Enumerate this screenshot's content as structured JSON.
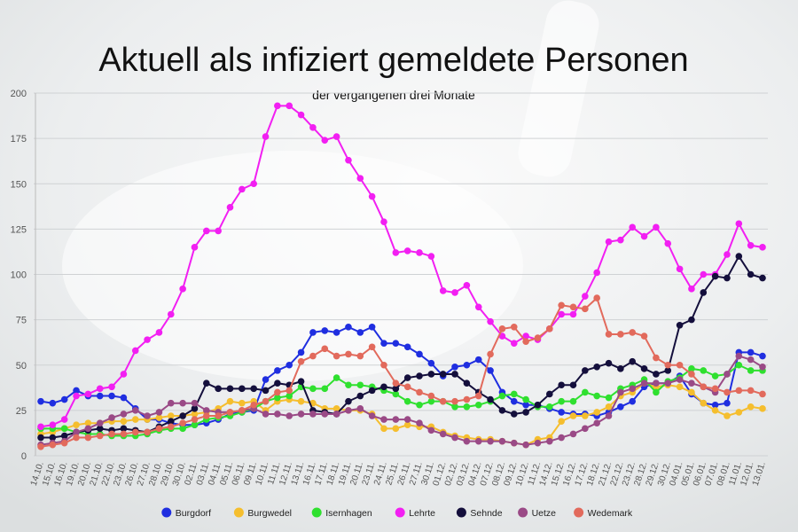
{
  "chart_data": {
    "type": "line",
    "title": "Aktuell als infiziert gemeldete Personen",
    "subtitle": "der vergangenen drei Monate",
    "categories": [
      "14.10.",
      "15.10.",
      "16.10.",
      "19.10.",
      "20.10.",
      "21.10.",
      "22.10.",
      "23.10.",
      "26.10.",
      "27.10.",
      "28.10.",
      "29.10.",
      "30.10.",
      "02.11.",
      "03.11.",
      "04.11.",
      "05.11.",
      "06.11.",
      "09.11.",
      "10.11.",
      "11.11.",
      "12.11.",
      "13.11.",
      "16.11.",
      "17.11.",
      "18.11.",
      "19.11.",
      "20.11.",
      "23.11.",
      "24.11.",
      "25.11.",
      "26.11.",
      "27.11.",
      "30.11.",
      "01.12.",
      "02.12.",
      "03.12.",
      "04.12.",
      "07.12.",
      "08.12.",
      "09.12.",
      "10.12.",
      "11.12.",
      "14.12.",
      "15.12.",
      "16.12.",
      "17.12.",
      "18.12.",
      "21.12.",
      "22.12.",
      "23.12.",
      "28.12.",
      "29.12.",
      "30.12.",
      "04.01.",
      "05.01.",
      "06.01.",
      "07.01.",
      "08.01.",
      "11.01.",
      "12.01.",
      "13.01."
    ],
    "ylim": [
      0,
      200
    ],
    "yticks": [
      0,
      25,
      50,
      75,
      100,
      125,
      150,
      175,
      200
    ],
    "grid": true,
    "series": [
      {
        "name": "Burgdorf",
        "color": "#1f2ee0",
        "values": [
          30,
          29,
          31,
          36,
          33,
          33,
          33,
          32,
          26,
          20,
          20,
          18,
          17,
          17,
          18,
          20,
          23,
          24,
          25,
          42,
          47,
          50,
          57,
          68,
          69,
          68,
          71,
          68,
          71,
          62,
          62,
          60,
          56,
          51,
          44,
          49,
          50,
          53,
          47,
          35,
          30,
          28,
          28,
          26,
          24,
          23,
          23,
          22,
          24,
          27,
          30,
          38,
          40,
          40,
          44,
          34,
          29,
          28,
          29,
          57,
          57,
          55
        ]
      },
      {
        "name": "Burgwedel",
        "color": "#f5be2e",
        "values": [
          12,
          13,
          15,
          17,
          18,
          18,
          19,
          19,
          20,
          20,
          21,
          22,
          22,
          23,
          24,
          26,
          30,
          29,
          30,
          25,
          30,
          31,
          30,
          29,
          26,
          26,
          25,
          25,
          23,
          15,
          15,
          17,
          16,
          16,
          13,
          11,
          10,
          9,
          9,
          8,
          7,
          6,
          9,
          10,
          19,
          22,
          22,
          24,
          27,
          33,
          35,
          40,
          38,
          39,
          38,
          35,
          29,
          25,
          22,
          24,
          27,
          26
        ]
      },
      {
        "name": "Isernhagen",
        "color": "#2fe02f",
        "values": [
          15,
          15,
          15,
          13,
          12,
          12,
          11,
          11,
          11,
          12,
          14,
          15,
          15,
          17,
          20,
          21,
          22,
          24,
          26,
          30,
          32,
          33,
          38,
          37,
          37,
          43,
          39,
          39,
          38,
          36,
          34,
          30,
          28,
          30,
          30,
          27,
          27,
          28,
          30,
          33,
          34,
          31,
          27,
          27,
          30,
          30,
          35,
          33,
          32,
          37,
          39,
          42,
          35,
          41,
          43,
          48,
          47,
          44,
          45,
          50,
          47,
          47
        ]
      },
      {
        "name": "Lehrte",
        "color": "#f21ff2",
        "values": [
          16,
          17,
          20,
          33,
          34,
          37,
          38,
          45,
          58,
          64,
          68,
          78,
          92,
          115,
          124,
          124,
          137,
          147,
          150,
          176,
          193,
          193,
          188,
          181,
          174,
          176,
          163,
          153,
          143,
          129,
          112,
          113,
          112,
          110,
          91,
          90,
          94,
          82,
          74,
          66,
          62,
          66,
          64,
          70,
          78,
          78,
          88,
          101,
          118,
          119,
          126,
          121,
          126,
          117,
          103,
          92,
          100,
          100,
          111,
          128,
          116,
          115
        ]
      },
      {
        "name": "Sehnde",
        "color": "#140f3c",
        "values": [
          10,
          10,
          11,
          13,
          14,
          15,
          14,
          15,
          14,
          13,
          16,
          19,
          22,
          26,
          40,
          37,
          37,
          37,
          37,
          36,
          40,
          39,
          41,
          25,
          24,
          23,
          30,
          33,
          36,
          38,
          37,
          43,
          44,
          45,
          45,
          45,
          40,
          35,
          31,
          25,
          23,
          24,
          28,
          34,
          39,
          39,
          47,
          49,
          51,
          48,
          52,
          48,
          45,
          47,
          72,
          75,
          90,
          99,
          98,
          110,
          100,
          98
        ]
      },
      {
        "name": "Uetze",
        "color": "#9a4a86",
        "values": [
          6,
          7,
          8,
          13,
          15,
          18,
          21,
          23,
          25,
          22,
          24,
          29,
          29,
          29,
          25,
          24,
          24,
          25,
          26,
          23,
          23,
          22,
          23,
          23,
          23,
          23,
          25,
          26,
          22,
          20,
          20,
          20,
          18,
          14,
          12,
          10,
          8,
          8,
          8,
          8,
          7,
          6,
          7,
          8,
          10,
          12,
          15,
          18,
          22,
          35,
          37,
          40,
          40,
          40,
          42,
          40,
          38,
          35,
          45,
          55,
          53,
          49
        ]
      },
      {
        "name": "Wedemark",
        "color": "#e26a5c",
        "values": [
          5,
          6,
          7,
          10,
          10,
          11,
          12,
          12,
          13,
          13,
          15,
          16,
          18,
          20,
          22,
          22,
          24,
          25,
          28,
          30,
          35,
          36,
          52,
          55,
          59,
          55,
          56,
          55,
          60,
          50,
          40,
          38,
          35,
          33,
          30,
          30,
          31,
          33,
          56,
          70,
          71,
          63,
          65,
          70,
          83,
          82,
          81,
          87,
          67,
          67,
          68,
          66,
          54,
          50,
          50,
          45,
          38,
          37,
          35,
          36,
          36,
          34
        ]
      }
    ]
  }
}
